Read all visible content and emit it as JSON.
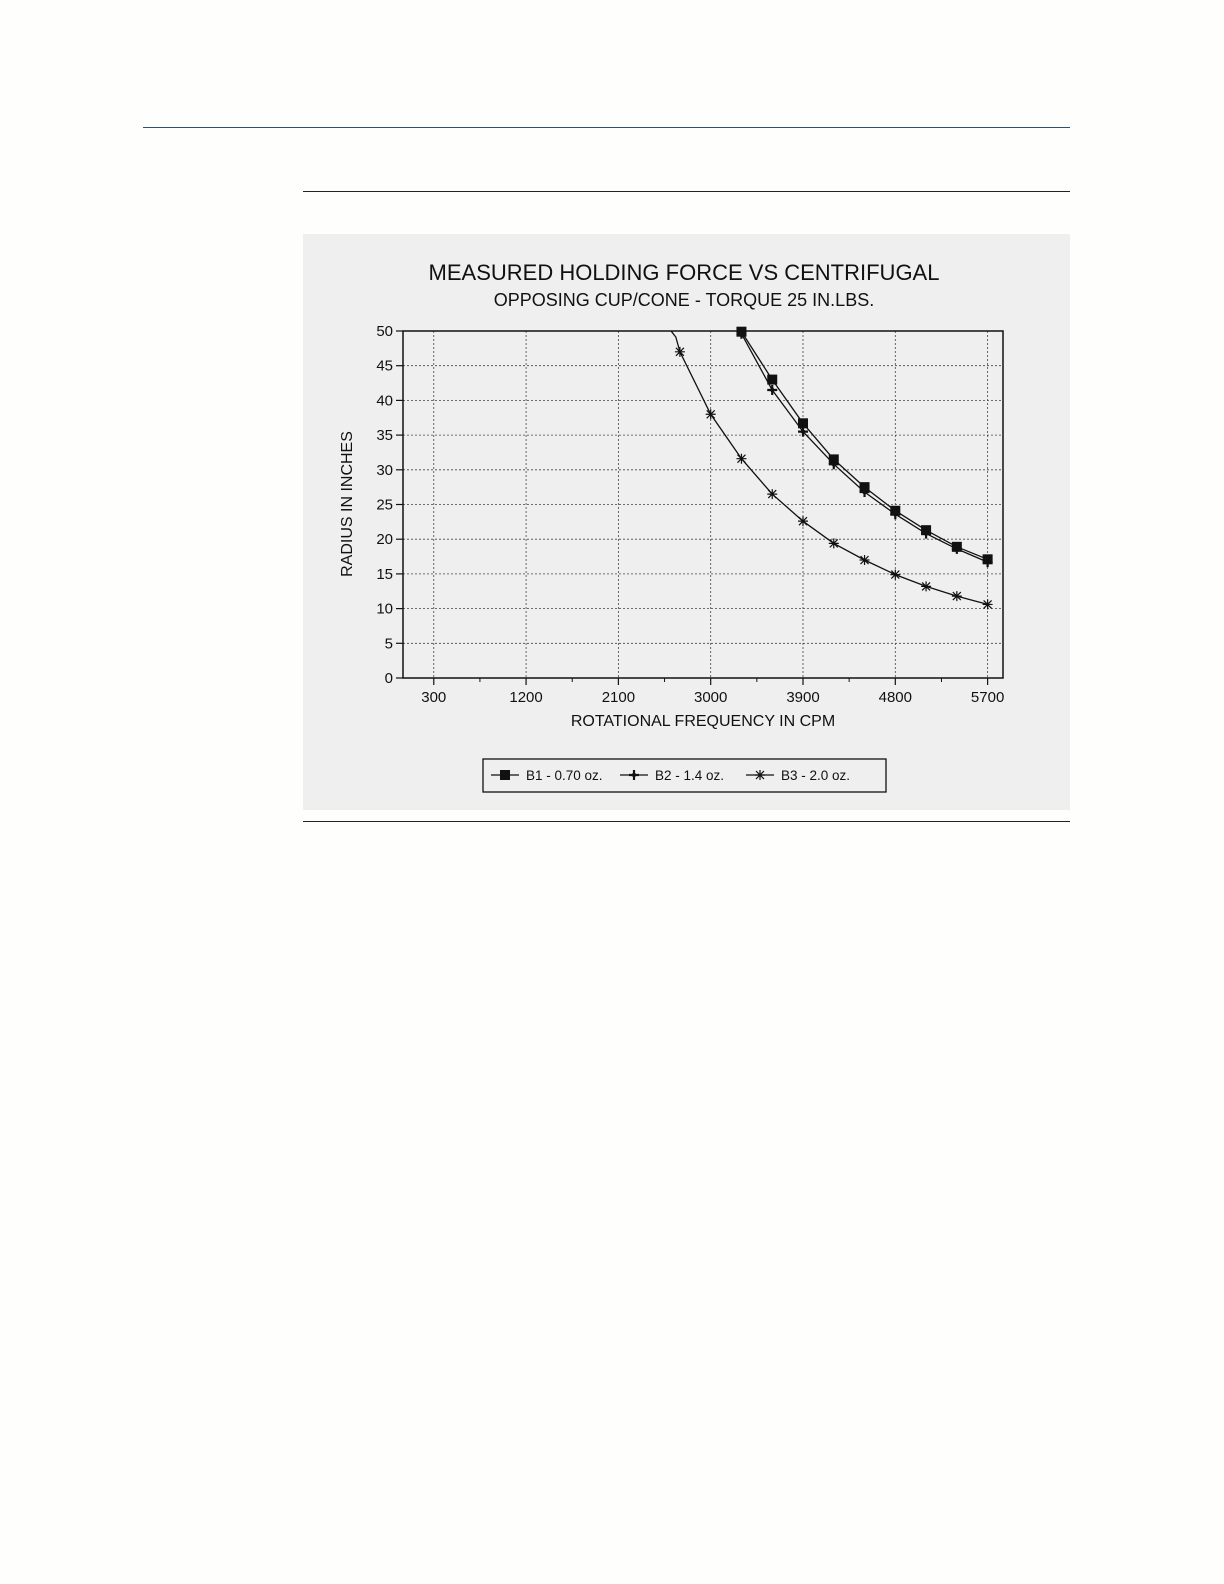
{
  "chart_data": {
    "type": "line",
    "title": "MEASURED HOLDING FORCE VS CENTRIFUGAL",
    "subtitle": "OPPOSING CUP/CONE - TORQUE 25 IN.LBS.",
    "xlabel": "ROTATIONAL FREQUENCY IN CPM",
    "ylabel": "RADIUS IN INCHES",
    "xlim": [
      0,
      5850
    ],
    "ylim": [
      0,
      50
    ],
    "xticks": [
      300,
      1200,
      2100,
      3000,
      3900,
      4800,
      5700
    ],
    "xtick_labels": [
      "300",
      "1200",
      "2100",
      "3000",
      "3900",
      "4800",
      "5700"
    ],
    "yticks": [
      0,
      5,
      10,
      15,
      20,
      25,
      30,
      35,
      40,
      45,
      50
    ],
    "ytick_labels": [
      "0",
      "5",
      "10",
      "15",
      "20",
      "25",
      "30",
      "35",
      "40",
      "45",
      "50"
    ],
    "grid": true,
    "legend_position": "bottom",
    "series": [
      {
        "name": "B1 - 0.70 oz.",
        "marker": "square",
        "x": [
          3300,
          3600,
          3900,
          4200,
          4500,
          4800,
          5100,
          5400,
          5700
        ],
        "y": [
          49.9,
          43.0,
          36.7,
          31.5,
          27.5,
          24.1,
          21.3,
          18.9,
          17.1
        ]
      },
      {
        "name": "B2 - 1.4 oz.",
        "marker": "plus",
        "x": [
          3300,
          3600,
          3900,
          4200,
          4500,
          4800,
          5100,
          5400,
          5700
        ],
        "y": [
          49.6,
          41.5,
          35.5,
          30.8,
          26.8,
          23.6,
          20.8,
          18.6,
          16.7
        ]
      },
      {
        "name": "B3 - 2.0 oz.",
        "marker": "star",
        "x": [
          2700,
          3000,
          3300,
          3600,
          3900,
          4200,
          4500,
          4800,
          5100,
          5400,
          5700
        ],
        "y": [
          47.0,
          38.0,
          31.6,
          26.5,
          22.6,
          19.4,
          17.0,
          14.9,
          13.2,
          11.8,
          10.6
        ]
      }
    ]
  },
  "colors": {
    "page": "#fefefc",
    "panel": "#efefef",
    "ink": "#111111",
    "header_rule": "#2f4f70"
  }
}
